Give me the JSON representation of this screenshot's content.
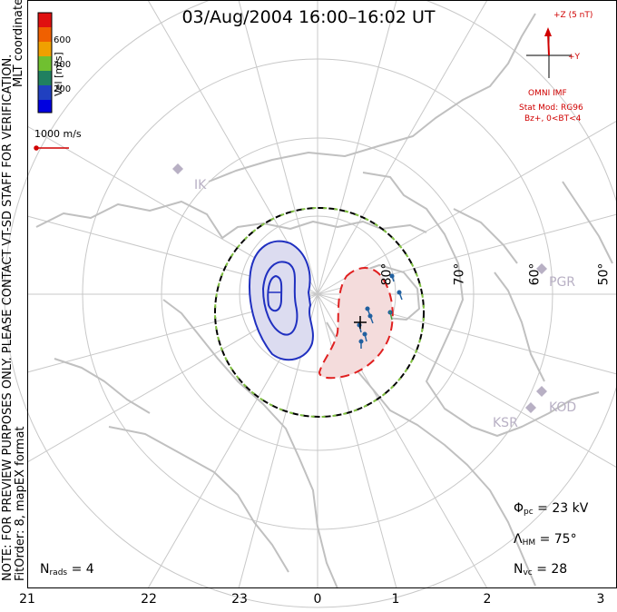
{
  "title": "03/Aug/2004 16:00–16:02 UT",
  "side_note_line1": "NOTE: FOR PREVIEW PURPOSES ONLY. PLEASE CONTACT VT-SD STAFF FOR VERIFICATION.",
  "side_note_line2": "FitOrder: 8,  mapEX format",
  "coordinates_label": "MLT coordinates",
  "colorbar": {
    "title": "Vel [m/s]",
    "ticks": [
      "600",
      "400",
      "200"
    ],
    "colors": [
      "#e01010",
      "#f06000",
      "#f0a000",
      "#70c030",
      "#208060",
      "#2040c0",
      "#0000e0"
    ]
  },
  "vector_scale_label": "1000 m/s",
  "imf": {
    "z_label": "+Z (5 nT)",
    "y_label": "+Y",
    "source": "OMNI IMF",
    "model": "Stat Mod: RG96",
    "condition": "Bz+, 0<BT<4"
  },
  "stats": {
    "phi_pc_symbol": "Φ",
    "phi_pc_sub": "pc",
    "phi_pc_value": "= 23 kV",
    "lambda_hm_symbol": "Λ",
    "lambda_hm_sub": "HM",
    "lambda_hm_value": "= 75°",
    "n_vc_symbol": "N",
    "n_vc_sub": "vc",
    "n_vc_value": "= 28",
    "n_rads_symbol": "N",
    "n_rads_sub": "rads",
    "n_rads_value": "= 4"
  },
  "mlt_ticks": [
    "21",
    "22",
    "23",
    "0",
    "1",
    "2",
    "3"
  ],
  "latitude_labels": [
    "80°",
    "70°",
    "60°",
    "50°"
  ],
  "stations": [
    "IK",
    "PGR",
    "KOD",
    "KSR"
  ],
  "colors": {
    "grid": "#c8c8c8",
    "coast": "#c0c0c0",
    "negative_cell": "#2030c0",
    "positive_cell": "#e02020",
    "hm_boundary": "#000000",
    "boundary_dash": "#80c040",
    "imf_vector": "#d00000",
    "station": "#b8b0c4"
  }
}
